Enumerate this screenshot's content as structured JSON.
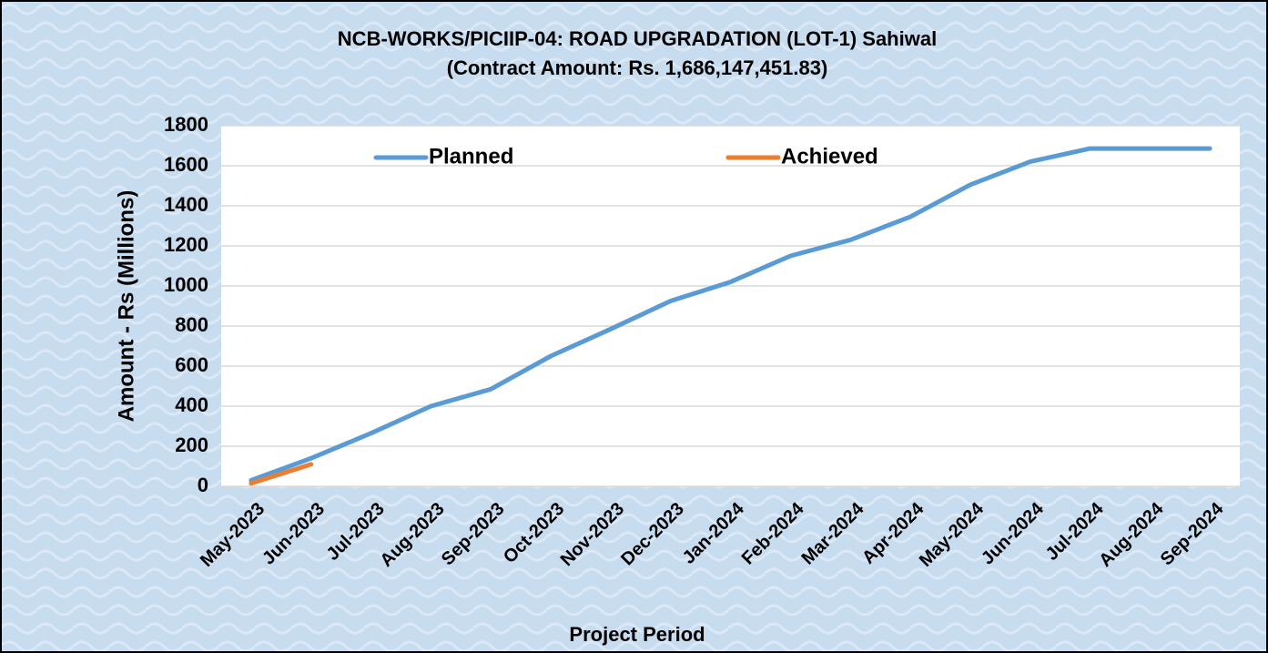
{
  "chart_data": {
    "type": "line",
    "title": "NCB-WORKS/PICIIP-04: ROAD UPGRADATION (LOT-1) Sahiwal",
    "subtitle": "(Contract Amount: Rs. 1,686,147,451.83)",
    "y_label": "Amount - Rs  (Millions)",
    "x_label": "Project Period",
    "categories": [
      "May-2023",
      "Jun-2023",
      "Jul-2023",
      "Aug-2023",
      "Sep-2023",
      "Oct-2023",
      "Nov-2023",
      "Dec-2023",
      "Jan-2024",
      "Feb-2024",
      "Mar-2024",
      "Apr-2024",
      "May-2024",
      "Jun-2024",
      "Jul-2024",
      "Aug-2024",
      "Sep-2024"
    ],
    "series": [
      {
        "name": "Planned",
        "color": "#5b9bd5",
        "values": [
          30,
          140,
          265,
          400,
          485,
          650,
          785,
          925,
          1020,
          1150,
          1230,
          1345,
          1505,
          1620,
          1686,
          1686,
          1686
        ]
      },
      {
        "name": "Achieved",
        "color": "#ed7d31",
        "values": [
          15,
          110,
          null,
          null,
          null,
          null,
          null,
          null,
          null,
          null,
          null,
          null,
          null,
          null,
          null,
          null,
          null
        ]
      }
    ],
    "ylim": [
      0,
      1800
    ],
    "yticks": [
      0,
      200,
      400,
      600,
      800,
      1000,
      1200,
      1400,
      1600,
      1800
    ],
    "grid": true,
    "legend": "top"
  }
}
